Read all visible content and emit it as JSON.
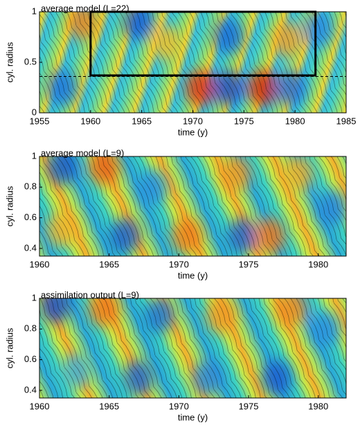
{
  "chart_data": [
    {
      "type": "contour",
      "title": "average model (L=22)",
      "x_label": "time (y)",
      "y_label": "cyl. radius",
      "xlim": [
        1955,
        1985
      ],
      "xticks": [
        1955,
        1960,
        1965,
        1970,
        1975,
        1980,
        1985
      ],
      "ylim": [
        0,
        1
      ],
      "yticks": [
        0,
        0.5,
        1
      ],
      "box": {
        "x": [
          1960,
          1982
        ],
        "y": [
          0.37,
          1
        ]
      },
      "dashed_y": 0.36
    },
    {
      "type": "contour",
      "title": "average model (L=9)",
      "x_label": "time (y)",
      "y_label": "cyl. radius",
      "xlim": [
        1960,
        1982
      ],
      "xticks": [
        1960,
        1965,
        1970,
        1975,
        1980
      ],
      "ylim": [
        0.35,
        1
      ],
      "yticks": [
        0.4,
        0.6,
        0.8,
        1
      ]
    },
    {
      "type": "contour",
      "title": "assimilation output (L=9)",
      "x_label": "time (y)",
      "y_label": "cyl. radius",
      "xlim": [
        1960,
        1982
      ],
      "xticks": [
        1960,
        1965,
        1970,
        1975,
        1980
      ],
      "ylim": [
        0.35,
        1
      ],
      "yticks": [
        0.4,
        0.6,
        0.8,
        1
      ]
    }
  ]
}
